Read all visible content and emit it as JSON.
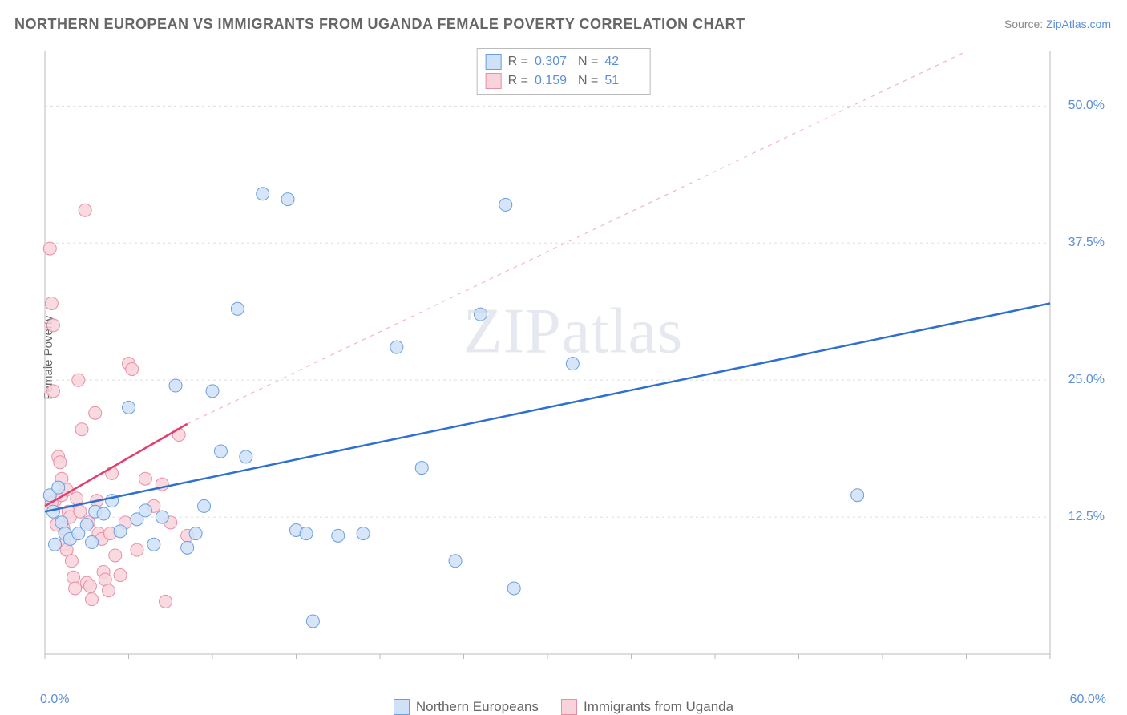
{
  "title": "NORTHERN EUROPEAN VS IMMIGRANTS FROM UGANDA FEMALE POVERTY CORRELATION CHART",
  "source_label": "Source: ",
  "source_value": "ZipAtlas.com",
  "ylabel": "Female Poverty",
  "watermark": "ZIPatlas",
  "chart": {
    "type": "scatter",
    "xlim": [
      0,
      60
    ],
    "ylim": [
      0,
      55
    ],
    "x_ticks_minor": [
      0,
      5,
      10,
      15,
      20,
      25,
      30,
      35,
      40,
      45,
      50,
      55,
      60
    ],
    "x_axis_labels": {
      "min": "0.0%",
      "max": "60.0%"
    },
    "y_gridlines": [
      {
        "v": 12.5,
        "label": "12.5%"
      },
      {
        "v": 25.0,
        "label": "25.0%"
      },
      {
        "v": 37.5,
        "label": "37.5%"
      },
      {
        "v": 50.0,
        "label": "50.0%"
      }
    ],
    "background_color": "#ffffff",
    "grid_color": "#dddddd",
    "axis_color": "#bbbbbb",
    "marker_radius": 8,
    "marker_stroke_width": 1,
    "series": [
      {
        "id": "northern_europeans",
        "label": "Northern Europeans",
        "fill": "#cfe1f7",
        "stroke": "#6a9fe0",
        "r_label": "R =",
        "r_value": "0.307",
        "n_label": "N =",
        "n_value": "42",
        "trend": {
          "x1": 0,
          "y1": 13.0,
          "x2": 60,
          "y2": 32.0,
          "dash": false,
          "width": 2.5,
          "color": "#2f6fd1"
        },
        "points": [
          [
            0.3,
            14.5
          ],
          [
            0.5,
            13.0
          ],
          [
            0.8,
            15.2
          ],
          [
            1.0,
            12.0
          ],
          [
            1.2,
            11.0
          ],
          [
            1.5,
            10.5
          ],
          [
            2.0,
            11.0
          ],
          [
            2.5,
            11.8
          ],
          [
            2.8,
            10.2
          ],
          [
            3.0,
            13.0
          ],
          [
            3.5,
            12.8
          ],
          [
            4.0,
            14.0
          ],
          [
            4.5,
            11.2
          ],
          [
            5.0,
            22.5
          ],
          [
            5.5,
            12.3
          ],
          [
            6.0,
            13.1
          ],
          [
            6.5,
            10.0
          ],
          [
            7.0,
            12.5
          ],
          [
            7.8,
            24.5
          ],
          [
            8.5,
            9.7
          ],
          [
            9.0,
            11.0
          ],
          [
            9.5,
            13.5
          ],
          [
            10.0,
            24.0
          ],
          [
            10.5,
            18.5
          ],
          [
            11.5,
            31.5
          ],
          [
            12.0,
            18.0
          ],
          [
            13.0,
            42.0
          ],
          [
            14.5,
            41.5
          ],
          [
            15.0,
            11.3
          ],
          [
            15.6,
            11.0
          ],
          [
            16.0,
            3.0
          ],
          [
            17.5,
            10.8
          ],
          [
            19.0,
            11.0
          ],
          [
            21.0,
            28.0
          ],
          [
            22.5,
            17.0
          ],
          [
            24.5,
            8.5
          ],
          [
            26.0,
            31.0
          ],
          [
            27.5,
            41.0
          ],
          [
            28.0,
            6.0
          ],
          [
            31.5,
            26.5
          ],
          [
            48.5,
            14.5
          ],
          [
            0.6,
            10.0
          ]
        ]
      },
      {
        "id": "immigrants_uganda",
        "label": "Immigrants from Uganda",
        "fill": "#f9d3dc",
        "stroke": "#e88fa5",
        "r_label": "R =",
        "r_value": "0.159",
        "n_label": "N =",
        "n_value": "51",
        "trend": {
          "x1": 0,
          "y1": 13.5,
          "x2": 8.5,
          "y2": 21.0,
          "dash": false,
          "width": 2.5,
          "color": "#e13d6d"
        },
        "trend_ext": {
          "x1": 8.5,
          "y1": 21.0,
          "x2": 55,
          "y2": 55.0,
          "dash": true,
          "width": 1.2,
          "color": "#f4b6c6"
        },
        "points": [
          [
            0.3,
            37.0
          ],
          [
            0.4,
            32.0
          ],
          [
            0.5,
            24.0
          ],
          [
            0.6,
            14.0
          ],
          [
            0.8,
            18.0
          ],
          [
            0.9,
            17.5
          ],
          [
            1.0,
            14.5
          ],
          [
            1.1,
            11.5
          ],
          [
            1.2,
            10.0
          ],
          [
            1.3,
            9.5
          ],
          [
            1.4,
            13.0
          ],
          [
            1.5,
            12.5
          ],
          [
            1.6,
            8.5
          ],
          [
            1.7,
            7.0
          ],
          [
            1.8,
            6.0
          ],
          [
            2.0,
            25.0
          ],
          [
            2.2,
            20.5
          ],
          [
            2.4,
            40.5
          ],
          [
            2.5,
            6.5
          ],
          [
            2.7,
            6.2
          ],
          [
            2.8,
            5.0
          ],
          [
            3.0,
            22.0
          ],
          [
            3.2,
            11.0
          ],
          [
            3.4,
            10.5
          ],
          [
            3.5,
            7.5
          ],
          [
            3.6,
            6.8
          ],
          [
            3.8,
            5.8
          ],
          [
            4.0,
            16.5
          ],
          [
            4.2,
            9.0
          ],
          [
            4.5,
            7.2
          ],
          [
            4.8,
            12.0
          ],
          [
            5.0,
            26.5
          ],
          [
            5.2,
            26.0
          ],
          [
            5.5,
            9.5
          ],
          [
            6.0,
            16.0
          ],
          [
            6.5,
            13.5
          ],
          [
            7.0,
            15.5
          ],
          [
            7.2,
            4.8
          ],
          [
            7.5,
            12.0
          ],
          [
            8.0,
            20.0
          ],
          [
            8.5,
            10.8
          ],
          [
            0.4,
            13.8
          ],
          [
            0.7,
            11.8
          ],
          [
            1.0,
            16.0
          ],
          [
            1.3,
            15.0
          ],
          [
            1.9,
            14.2
          ],
          [
            2.1,
            13.0
          ],
          [
            2.6,
            12.0
          ],
          [
            3.1,
            14.0
          ],
          [
            3.9,
            11.0
          ],
          [
            0.5,
            30.0
          ]
        ]
      }
    ]
  }
}
